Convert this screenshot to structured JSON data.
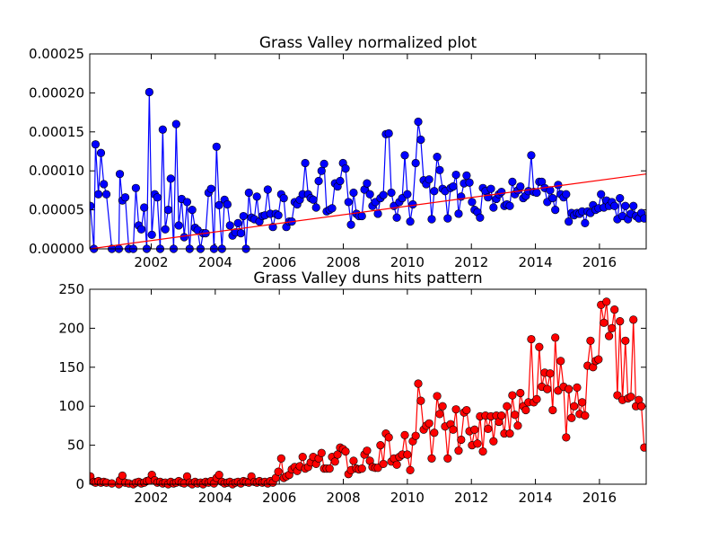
{
  "chart_data": [
    {
      "type": "line",
      "title": "Grass Valley normalized plot",
      "xlim": [
        2000.08,
        2017.46
      ],
      "xticks": [
        2002,
        2004,
        2006,
        2008,
        2010,
        2012,
        2014,
        2016
      ],
      "ylim": [
        0,
        0.00025
      ],
      "yticks": [
        {
          "value": 0,
          "label": "0.00000"
        },
        {
          "value": 5e-05,
          "label": "0.00005"
        },
        {
          "value": 0.0001,
          "label": "0.00010"
        },
        {
          "value": 0.00015,
          "label": "0.00015"
        },
        {
          "value": 0.0002,
          "label": "0.00020"
        },
        {
          "value": 0.00025,
          "label": "0.00025"
        }
      ],
      "x": [
        2000.1,
        2000.21,
        2000.26,
        2000.35,
        2000.43,
        2000.52,
        2000.6,
        2000.77,
        2000.99,
        2001.02,
        2001.1,
        2001.19,
        2001.3,
        2001.44,
        2001.52,
        2001.61,
        2001.69,
        2001.78,
        2001.86,
        2001.94,
        2002.02,
        2002.11,
        2002.19,
        2002.28,
        2002.36,
        2002.44,
        2002.53,
        2002.61,
        2002.7,
        2002.78,
        2002.86,
        2002.95,
        2003.03,
        2003.12,
        2003.2,
        2003.28,
        2003.37,
        2003.45,
        2003.54,
        2003.62,
        2003.7,
        2003.79,
        2003.87,
        2003.96,
        2004.04,
        2004.12,
        2004.21,
        2004.29,
        2004.38,
        2004.46,
        2004.54,
        2004.63,
        2004.71,
        2004.8,
        2004.88,
        2004.96,
        2005.05,
        2005.13,
        2005.22,
        2005.3,
        2005.38,
        2005.47,
        2005.55,
        2005.64,
        2005.72,
        2005.8,
        2005.89,
        2005.97,
        2006.06,
        2006.14,
        2006.22,
        2006.31,
        2006.39,
        2006.48,
        2006.56,
        2006.64,
        2006.73,
        2006.81,
        2006.9,
        2006.98,
        2007.06,
        2007.15,
        2007.23,
        2007.32,
        2007.4,
        2007.48,
        2007.57,
        2007.65,
        2007.74,
        2007.82,
        2007.9,
        2007.99,
        2008.07,
        2008.16,
        2008.24,
        2008.32,
        2008.41,
        2008.49,
        2008.58,
        2008.66,
        2008.74,
        2008.83,
        2008.91,
        2009.0,
        2009.08,
        2009.16,
        2009.25,
        2009.33,
        2009.42,
        2009.5,
        2009.58,
        2009.67,
        2009.75,
        2009.84,
        2009.92,
        2010.0,
        2010.09,
        2010.17,
        2010.26,
        2010.34,
        2010.42,
        2010.51,
        2010.59,
        2010.68,
        2010.76,
        2010.84,
        2010.93,
        2011.01,
        2011.1,
        2011.18,
        2011.26,
        2011.35,
        2011.43,
        2011.52,
        2011.6,
        2011.68,
        2011.77,
        2011.85,
        2011.94,
        2012.02,
        2012.1,
        2012.19,
        2012.27,
        2012.36,
        2012.44,
        2012.52,
        2012.61,
        2012.69,
        2012.78,
        2012.86,
        2012.94,
        2013.03,
        2013.11,
        2013.2,
        2013.28,
        2013.36,
        2013.45,
        2013.53,
        2013.62,
        2013.7,
        2013.78,
        2013.87,
        2013.95,
        2014.04,
        2014.12,
        2014.2,
        2014.29,
        2014.37,
        2014.46,
        2014.54,
        2014.62,
        2014.71,
        2014.79,
        2014.88,
        2014.96,
        2015.04,
        2015.13,
        2015.21,
        2015.3,
        2015.38,
        2015.46,
        2015.55,
        2015.63,
        2015.72,
        2015.8,
        2015.88,
        2015.97,
        2016.05,
        2016.14,
        2016.22,
        2016.3,
        2016.39,
        2016.47,
        2016.56,
        2016.64,
        2016.72,
        2016.81,
        2016.89,
        2016.98,
        2017.06,
        2017.14,
        2017.23,
        2017.31,
        2017.4
      ],
      "series": [
        {
          "color": "#0000ff",
          "marker": "o",
          "values": [
            5.5e-05,
            0,
            0.000134,
            7e-05,
            0.000123,
            8.3e-05,
            7e-05,
            0,
            0,
            9.6e-05,
            6.2e-05,
            6.6e-05,
            0,
            0,
            7.8e-05,
            3e-05,
            2.5e-05,
            5.3e-05,
            0,
            0.000201,
            1.8e-05,
            7e-05,
            6.6e-05,
            0,
            0.000153,
            2.5e-05,
            5e-05,
            9e-05,
            0,
            0.00016,
            3e-05,
            6.4e-05,
            1.5e-05,
            6e-05,
            0,
            5e-05,
            2.7e-05,
            2.4e-05,
            0,
            2e-05,
            2e-05,
            7.2e-05,
            7.7e-05,
            0,
            0.000131,
            5.6e-05,
            0,
            6.3e-05,
            5.7e-05,
            3e-05,
            1.7e-05,
            2.1e-05,
            3.3e-05,
            2e-05,
            4.2e-05,
            0,
            7.2e-05,
            4e-05,
            3.8e-05,
            6.7e-05,
            3.5e-05,
            4.2e-05,
            4.3e-05,
            7.6e-05,
            4.5e-05,
            2.8e-05,
            4.5e-05,
            4.3e-05,
            7e-05,
            6.5e-05,
            2.8e-05,
            3.5e-05,
            3.5e-05,
            6e-05,
            5.7e-05,
            6.3e-05,
            7e-05,
            0.00011,
            7e-05,
            6.5e-05,
            6.3e-05,
            5.3e-05,
            8.7e-05,
            0.0001,
            0.000109,
            4.8e-05,
            5e-05,
            5.2e-05,
            8.4e-05,
            8e-05,
            8.7e-05,
            0.00011,
            0.000103,
            6e-05,
            3.1e-05,
            7.2e-05,
            4.5e-05,
            4.2e-05,
            4.2e-05,
            7.6e-05,
            8.4e-05,
            7e-05,
            5.5e-05,
            6e-05,
            4.5e-05,
            6.5e-05,
            6.9e-05,
            0.000147,
            0.000148,
            7.2e-05,
            5.5e-05,
            4e-05,
            6e-05,
            6.5e-05,
            0.00012,
            7e-05,
            3.5e-05,
            5.7e-05,
            0.00011,
            0.000163,
            0.00014,
            8.8e-05,
            8.3e-05,
            8.9e-05,
            3.8e-05,
            7.4e-05,
            0.000118,
            0.000101,
            7.7e-05,
            7.4e-05,
            3.9e-05,
            7.8e-05,
            8e-05,
            9.5e-05,
            4.5e-05,
            6.7e-05,
            8.4e-05,
            9.4e-05,
            8.5e-05,
            6e-05,
            5e-05,
            4.7e-05,
            4e-05,
            7.8e-05,
            7.4e-05,
            6.6e-05,
            7.7e-05,
            5.3e-05,
            6.4e-05,
            7e-05,
            7.3e-05,
            5.5e-05,
            5.7e-05,
            5.5e-05,
            8.6e-05,
            7e-05,
            7.5e-05,
            8e-05,
            6.5e-05,
            6.8e-05,
            7.4e-05,
            0.00012,
            7.3e-05,
            7.2e-05,
            8.6e-05,
            8.6e-05,
            7.8e-05,
            6e-05,
            7.5e-05,
            6.5e-05,
            5e-05,
            8.2e-05,
            7e-05,
            6.6e-05,
            7e-05,
            3.5e-05,
            4.6e-05,
            4.3e-05,
            4.6e-05,
            4.5e-05,
            4.8e-05,
            3.3e-05,
            4.8e-05,
            4.6e-05,
            5.6e-05,
            5e-05,
            5.2e-05,
            7e-05,
            5.3e-05,
            6.2e-05,
            5.5e-05,
            6e-05,
            5.5e-05,
            3.8e-05,
            6.5e-05,
            4.2e-05,
            5.5e-05,
            3.8e-05,
            4.5e-05,
            5.5e-05,
            4.2e-05,
            3.9e-05,
            4.6e-05,
            3.9e-05
          ]
        },
        {
          "color": "#ff0000",
          "marker": "none",
          "x": [
            2000.08,
            2017.46
          ],
          "values": [
            0,
            9.6e-05
          ]
        }
      ]
    },
    {
      "type": "line",
      "title": "Grass Valley duns hits pattern",
      "xlim": [
        2000.08,
        2017.46
      ],
      "xticks": [
        2002,
        2004,
        2006,
        2008,
        2010,
        2012,
        2014,
        2016
      ],
      "ylim": [
        0,
        250
      ],
      "yticks": [
        0,
        50,
        100,
        150,
        200,
        250
      ],
      "x": [
        2000.1,
        2000.21,
        2000.26,
        2000.35,
        2000.43,
        2000.52,
        2000.6,
        2000.77,
        2000.99,
        2001.02,
        2001.1,
        2001.19,
        2001.3,
        2001.44,
        2001.52,
        2001.61,
        2001.69,
        2001.78,
        2001.86,
        2001.94,
        2002.02,
        2002.11,
        2002.19,
        2002.28,
        2002.36,
        2002.44,
        2002.53,
        2002.61,
        2002.7,
        2002.78,
        2002.86,
        2002.95,
        2003.03,
        2003.12,
        2003.2,
        2003.28,
        2003.37,
        2003.45,
        2003.54,
        2003.62,
        2003.7,
        2003.79,
        2003.87,
        2003.96,
        2004.04,
        2004.12,
        2004.21,
        2004.29,
        2004.38,
        2004.46,
        2004.54,
        2004.63,
        2004.71,
        2004.8,
        2004.88,
        2004.96,
        2005.05,
        2005.13,
        2005.22,
        2005.3,
        2005.38,
        2005.47,
        2005.55,
        2005.64,
        2005.72,
        2005.8,
        2005.89,
        2005.97,
        2006.06,
        2006.14,
        2006.22,
        2006.31,
        2006.39,
        2006.48,
        2006.56,
        2006.64,
        2006.73,
        2006.81,
        2006.9,
        2006.98,
        2007.06,
        2007.15,
        2007.23,
        2007.32,
        2007.4,
        2007.48,
        2007.57,
        2007.65,
        2007.74,
        2007.82,
        2007.9,
        2007.99,
        2008.07,
        2008.16,
        2008.24,
        2008.32,
        2008.41,
        2008.49,
        2008.58,
        2008.66,
        2008.74,
        2008.83,
        2008.91,
        2009.0,
        2009.08,
        2009.16,
        2009.25,
        2009.33,
        2009.42,
        2009.5,
        2009.58,
        2009.67,
        2009.75,
        2009.84,
        2009.92,
        2010.0,
        2010.09,
        2010.17,
        2010.26,
        2010.34,
        2010.42,
        2010.51,
        2010.59,
        2010.68,
        2010.76,
        2010.84,
        2010.93,
        2011.01,
        2011.1,
        2011.18,
        2011.26,
        2011.35,
        2011.43,
        2011.52,
        2011.6,
        2011.68,
        2011.77,
        2011.85,
        2011.94,
        2012.02,
        2012.1,
        2012.19,
        2012.27,
        2012.36,
        2012.44,
        2012.52,
        2012.61,
        2012.69,
        2012.78,
        2012.86,
        2012.94,
        2013.03,
        2013.11,
        2013.2,
        2013.28,
        2013.36,
        2013.45,
        2013.53,
        2013.62,
        2013.7,
        2013.78,
        2013.87,
        2013.95,
        2014.04,
        2014.12,
        2014.2,
        2014.29,
        2014.37,
        2014.46,
        2014.54,
        2014.62,
        2014.71,
        2014.79,
        2014.88,
        2014.96,
        2015.04,
        2015.13,
        2015.21,
        2015.3,
        2015.38,
        2015.46,
        2015.55,
        2015.63,
        2015.72,
        2015.8,
        2015.88,
        2015.97,
        2016.05,
        2016.14,
        2016.22,
        2016.3,
        2016.39,
        2016.47,
        2016.56,
        2016.64,
        2016.72,
        2016.81,
        2016.89,
        2016.98,
        2017.06,
        2017.14,
        2017.23,
        2017.31,
        2017.4
      ],
      "series": [
        {
          "color": "#ff0000",
          "marker": "o",
          "values": [
            10,
            3,
            2,
            4,
            2,
            3,
            2,
            1,
            0,
            5,
            11,
            2,
            1,
            0,
            2,
            3,
            1,
            2,
            4,
            5,
            12,
            5,
            2,
            3,
            1,
            2,
            0,
            3,
            1,
            2,
            4,
            2,
            1,
            10,
            2,
            0,
            3,
            1,
            2,
            0,
            3,
            2,
            4,
            1,
            8,
            12,
            3,
            1,
            2,
            3,
            0,
            2,
            3,
            1,
            4,
            3,
            2,
            10,
            3,
            2,
            4,
            2,
            3,
            1,
            4,
            2,
            8,
            16,
            33,
            8,
            10,
            12,
            19,
            22,
            17,
            23,
            35,
            20,
            22,
            28,
            35,
            26,
            33,
            40,
            20,
            20,
            20,
            35,
            29,
            38,
            47,
            45,
            42,
            13,
            18,
            30,
            20,
            19,
            20,
            38,
            43,
            30,
            22,
            21,
            21,
            50,
            26,
            65,
            60,
            29,
            33,
            25,
            35,
            38,
            63,
            38,
            18,
            55,
            62,
            129,
            107,
            70,
            75,
            78,
            33,
            66,
            113,
            90,
            100,
            74,
            33,
            77,
            70,
            96,
            43,
            57,
            92,
            95,
            68,
            50,
            70,
            52,
            87,
            42,
            88,
            71,
            87,
            55,
            88,
            80,
            88,
            65,
            100,
            65,
            114,
            89,
            75,
            117,
            100,
            95,
            105,
            186,
            105,
            109,
            176,
            125,
            143,
            122,
            142,
            95,
            188,
            120,
            158,
            125,
            60,
            122,
            85,
            100,
            124,
            90,
            105,
            88,
            152,
            184,
            150,
            158,
            160,
            230,
            207,
            234,
            190,
            200,
            224,
            114,
            209,
            108,
            184,
            110,
            112,
            211,
            100,
            108,
            100,
            47
          ]
        }
      ]
    }
  ]
}
